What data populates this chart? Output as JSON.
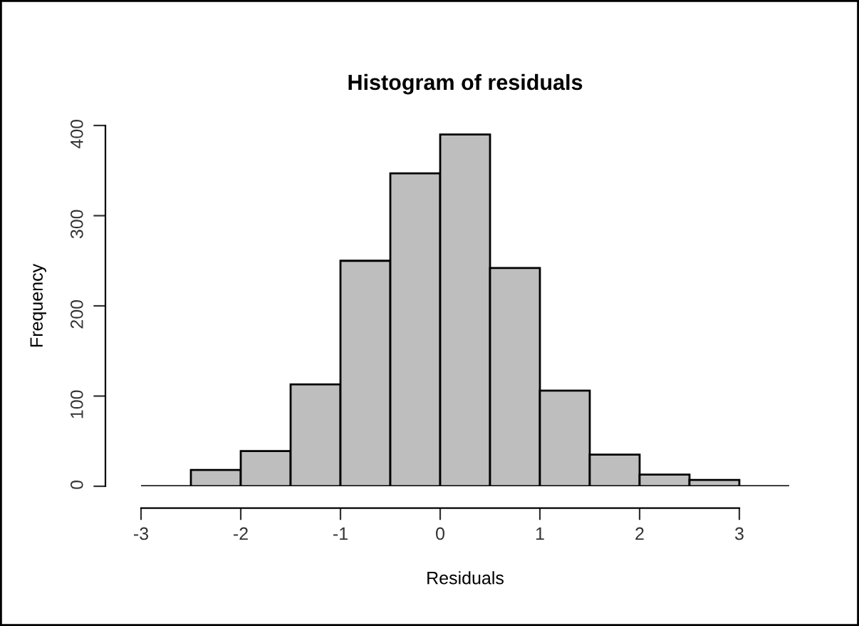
{
  "chart_data": {
    "type": "histogram",
    "title": "Histogram of residuals",
    "xlabel": "Residuals",
    "ylabel": "Frequency",
    "bins": [
      -2.5,
      -2.0,
      -1.5,
      -1.0,
      -0.5,
      0.0,
      0.5,
      1.0,
      1.5,
      2.0,
      2.5,
      3.0
    ],
    "values": [
      18,
      39,
      113,
      250,
      347,
      390,
      242,
      106,
      35,
      13,
      7
    ],
    "color": "#bebebe",
    "xlim": [
      -3,
      3.5
    ],
    "ylim": [
      0,
      400
    ],
    "xticks": [
      -3,
      -2,
      -1,
      0,
      1,
      2,
      3
    ],
    "yticks": [
      0,
      100,
      200,
      300,
      400
    ],
    "ref_lines": [
      {
        "axis": "y",
        "value": 0,
        "color": "#000000"
      }
    ],
    "grid": false,
    "legend": false
  }
}
